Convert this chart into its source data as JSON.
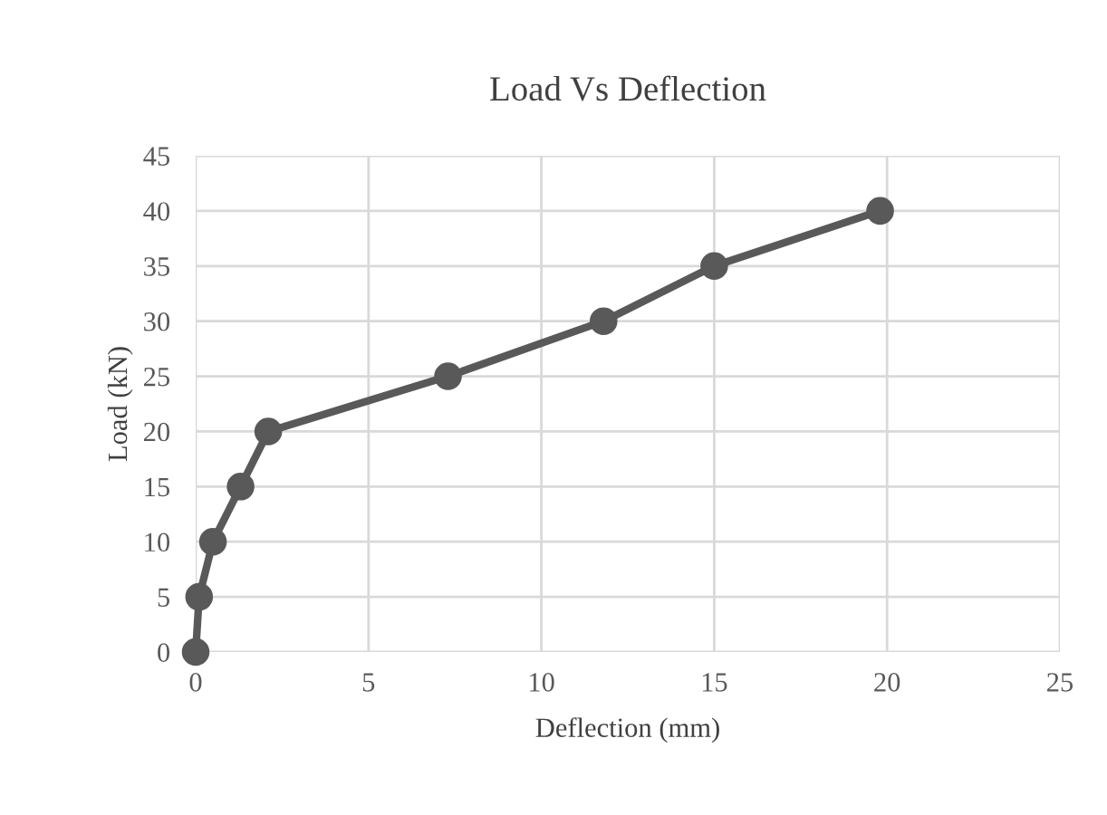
{
  "chart_data": {
    "type": "line",
    "title": "Load Vs Deflection",
    "xlabel": "Deflection (mm)",
    "ylabel": "Load (kN)",
    "series": [
      {
        "color": "#595959",
        "x": [
          0,
          0.1,
          0.5,
          1.3,
          2.1,
          7.3,
          11.8,
          15.0,
          19.8
        ],
        "values": [
          0,
          5,
          10,
          15,
          20,
          25,
          30,
          35,
          40
        ]
      }
    ],
    "xlim": [
      0,
      25
    ],
    "xticks": [
      0,
      5,
      10,
      15,
      20,
      25
    ],
    "ylim": [
      0,
      45
    ],
    "yticks": [
      0,
      5,
      10,
      15,
      20,
      25,
      30,
      35,
      40,
      45
    ],
    "grid": true,
    "marker": "circle",
    "line_style": "solid"
  }
}
